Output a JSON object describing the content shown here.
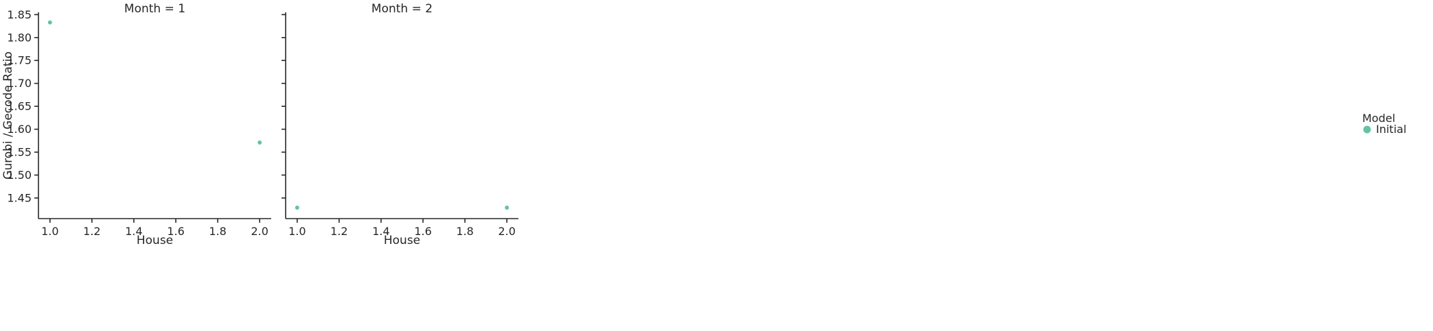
{
  "chart_data": {
    "type": "scatter",
    "ylabel": "Gurobi / Gecode Ratio",
    "ylim": [
      1.405,
      1.855
    ],
    "yticks": [
      1.45,
      1.5,
      1.55,
      1.6,
      1.65,
      1.7,
      1.75,
      1.8,
      1.85
    ],
    "ytick_labels": [
      "1.45",
      "1.50",
      "1.55",
      "1.60",
      "1.65",
      "1.70",
      "1.75",
      "1.80",
      "1.85"
    ],
    "xlim": [
      0.945,
      2.055
    ],
    "xticks": [
      1.0,
      1.2,
      1.4,
      1.6,
      1.8,
      2.0
    ],
    "xtick_labels": [
      "1.0",
      "1.2",
      "1.4",
      "1.6",
      "1.8",
      "2.0"
    ],
    "grid": false,
    "legend": {
      "title": "Model",
      "placement": "right",
      "entries": [
        {
          "label": "Initial",
          "color": "#66c2a5"
        }
      ]
    },
    "panels": [
      {
        "title": "Month = 1",
        "xlabel": "House",
        "series": [
          {
            "name": "Initial",
            "color": "#66c2a5",
            "points": [
              {
                "x": 1.0,
                "y": 1.833
              },
              {
                "x": 2.0,
                "y": 1.571
              }
            ]
          }
        ]
      },
      {
        "title": "Month = 2",
        "xlabel": "House",
        "series": [
          {
            "name": "Initial",
            "color": "#66c2a5",
            "points": [
              {
                "x": 1.0,
                "y": 1.429
              },
              {
                "x": 2.0,
                "y": 1.429
              }
            ]
          }
        ]
      }
    ]
  }
}
